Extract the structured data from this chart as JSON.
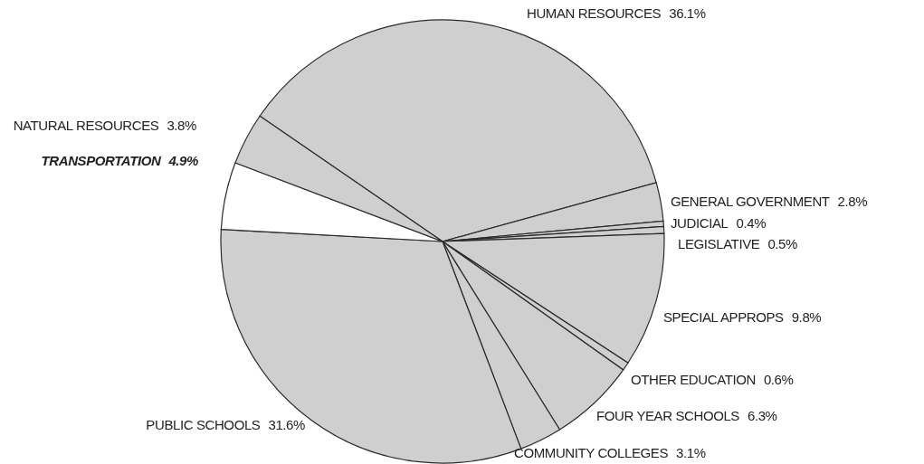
{
  "chart_data": {
    "type": "pie",
    "categories": [
      "HUMAN RESOURCES",
      "GENERAL GOVERNMENT",
      "JUDICIAL",
      "LEGISLATIVE",
      "SPECIAL APPROPS",
      "OTHER EDUCATION",
      "FOUR YEAR SCHOOLS",
      "COMMUNITY COLLEGES",
      "PUBLIC SCHOOLS",
      "TRANSPORTATION",
      "NATURAL RESOURCES"
    ],
    "values": [
      36.1,
      2.8,
      0.4,
      0.5,
      9.8,
      0.6,
      6.3,
      3.1,
      31.6,
      4.9,
      3.8
    ],
    "value_labels": [
      "36.1%",
      "2.8%",
      "0.4%",
      "0.5%",
      "9.8%",
      "0.6%",
      "6.3%",
      "3.1%",
      "31.6%",
      "4.9%",
      "3.8%"
    ],
    "colors": [
      "#cfcfcf",
      "#cfcfcf",
      "#cfcfcf",
      "#cfcfcf",
      "#cfcfcf",
      "#cfcfcf",
      "#cfcfcf",
      "#cfcfcf",
      "#cfcfcf",
      "#ffffff",
      "#cfcfcf"
    ]
  }
}
